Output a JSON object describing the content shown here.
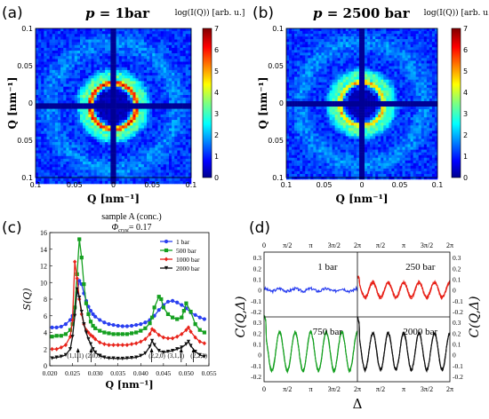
{
  "chart_data": [
    {
      "type": "heatmap",
      "panel_label": "(a)",
      "title": "p = 1bar",
      "title_italic_part": "p",
      "title_rest": " = 1bar",
      "colorbar_label": "log(I(Q)) [arb. u.]",
      "colorbar_ticks": [
        "0",
        "1",
        "2",
        "3",
        "4",
        "5",
        "6",
        "7"
      ],
      "colorbar_range": [
        0,
        7
      ],
      "xlabel": "Q [nm⁻¹]",
      "ylabel": "Q [nm⁻¹]",
      "x_ticks": [
        "0.1",
        "0.05",
        "0",
        "0.05",
        "0.1"
      ],
      "y_ticks": [
        "0.1",
        "0.05",
        "0",
        "0.05",
        "0.1"
      ],
      "ring_radius": 0.03,
      "ring_peak_log_intensity": 6.2
    },
    {
      "type": "heatmap",
      "panel_label": "(b)",
      "title": "p = 2500 bar",
      "title_italic_part": "p",
      "title_rest": " = 2500 bar",
      "colorbar_label": "log(I(Q)) [arb. u.]",
      "colorbar_ticks": [
        "0",
        "1",
        "2",
        "3",
        "4",
        "5",
        "6",
        "7"
      ],
      "colorbar_range": [
        0,
        7
      ],
      "xlabel": "Q [nm⁻¹]",
      "ylabel": "Q [nm⁻¹]",
      "x_ticks": [
        "0.1",
        "0.05",
        "0",
        "0.05",
        "0.1"
      ],
      "y_ticks": [
        "0.1",
        "0.05",
        "0",
        "0.05",
        "0.1"
      ],
      "ring_radius": 0.029,
      "ring_peak_log_intensity": 5.0
    },
    {
      "type": "line",
      "panel_label": "(c)",
      "title": "sample A (conc.)",
      "subtitle": "Φ_cryst = 0.17",
      "subtitle_main": "Φ",
      "subtitle_sub": "cryst",
      "subtitle_rest": "= 0.17",
      "xlabel": "Q [nm⁻¹]",
      "ylabel": "S(Q)",
      "xlim": [
        0.02,
        0.055
      ],
      "ylim": [
        0,
        16
      ],
      "x_ticks": [
        "0.020",
        "0.025",
        "0.030",
        "0.035",
        "0.040",
        "0.045",
        "0.050",
        "0.055"
      ],
      "y_ticks": [
        "0",
        "2",
        "4",
        "6",
        "8",
        "10",
        "12",
        "14",
        "16"
      ],
      "legend_position": "top-right",
      "annotations": [
        {
          "text": "(1,1,1)",
          "x": 0.0262
        },
        {
          "text": "(2,0,0)",
          "x": 0.0291
        },
        {
          "text": "(2,2,0)",
          "x": 0.0424
        },
        {
          "text": "(3,1,1)",
          "x": 0.0489
        },
        {
          "text": "(2,2,2)",
          "x": 0.0516
        }
      ],
      "series": [
        {
          "name": "1 bar",
          "color": "#2a3ff0",
          "marker": "circle",
          "x": [
            0.0205,
            0.0215,
            0.0225,
            0.0235,
            0.0245,
            0.025,
            0.0255,
            0.026,
            0.0265,
            0.027,
            0.0275,
            0.028,
            0.0285,
            0.029,
            0.0295,
            0.03,
            0.031,
            0.032,
            0.033,
            0.034,
            0.035,
            0.036,
            0.037,
            0.038,
            0.039,
            0.04,
            0.041,
            0.042,
            0.043,
            0.044,
            0.045,
            0.046,
            0.047,
            0.048,
            0.049,
            0.05,
            0.051,
            0.052,
            0.053,
            0.054
          ],
          "y": [
            4.6,
            4.6,
            4.7,
            5.0,
            5.5,
            6.0,
            7.0,
            8.8,
            10.2,
            9.8,
            8.7,
            7.8,
            7.1,
            6.6,
            6.2,
            5.9,
            5.5,
            5.2,
            5.0,
            4.9,
            4.8,
            4.75,
            4.75,
            4.8,
            4.9,
            5.0,
            5.2,
            5.5,
            6.0,
            6.7,
            7.3,
            7.7,
            7.8,
            7.6,
            7.3,
            6.9,
            6.4,
            6.1,
            5.8,
            5.6
          ]
        },
        {
          "name": "500 bar",
          "color": "#15a020",
          "marker": "square",
          "x": [
            0.0205,
            0.0215,
            0.0225,
            0.0235,
            0.0245,
            0.025,
            0.0255,
            0.026,
            0.0265,
            0.027,
            0.0275,
            0.028,
            0.0285,
            0.029,
            0.0295,
            0.03,
            0.031,
            0.032,
            0.033,
            0.034,
            0.035,
            0.036,
            0.037,
            0.038,
            0.039,
            0.04,
            0.041,
            0.042,
            0.0425,
            0.043,
            0.044,
            0.0445,
            0.045,
            0.046,
            0.047,
            0.048,
            0.049,
            0.0495,
            0.05,
            0.051,
            0.052,
            0.053,
            0.054
          ],
          "y": [
            3.5,
            3.6,
            3.6,
            3.8,
            4.3,
            5.0,
            7.0,
            11.0,
            15.2,
            13.0,
            9.8,
            7.5,
            6.2,
            5.3,
            4.8,
            4.5,
            4.2,
            4.0,
            3.9,
            3.8,
            3.8,
            3.8,
            3.8,
            3.9,
            4.0,
            4.2,
            4.5,
            5.1,
            5.8,
            7.0,
            8.3,
            8.0,
            7.0,
            6.2,
            5.8,
            5.6,
            5.8,
            6.6,
            7.5,
            6.5,
            5.0,
            4.3,
            4.0
          ]
        },
        {
          "name": "1000 bar",
          "color": "#e8231a",
          "marker": "diamond",
          "x": [
            0.0205,
            0.0215,
            0.0225,
            0.0235,
            0.0245,
            0.025,
            0.0255,
            0.026,
            0.0265,
            0.027,
            0.0275,
            0.028,
            0.0285,
            0.029,
            0.0295,
            0.03,
            0.031,
            0.032,
            0.033,
            0.034,
            0.035,
            0.036,
            0.037,
            0.038,
            0.039,
            0.04,
            0.041,
            0.042,
            0.0425,
            0.043,
            0.044,
            0.045,
            0.046,
            0.047,
            0.048,
            0.049,
            0.05,
            0.0505,
            0.051,
            0.052,
            0.053,
            0.054
          ],
          "y": [
            2.0,
            2.0,
            2.2,
            2.5,
            3.5,
            5.5,
            12.5,
            10.5,
            8.0,
            6.2,
            5.0,
            4.3,
            4.0,
            3.7,
            3.5,
            3.2,
            2.8,
            2.6,
            2.5,
            2.5,
            2.5,
            2.5,
            2.5,
            2.6,
            2.7,
            2.9,
            3.2,
            3.8,
            4.4,
            4.2,
            3.7,
            3.4,
            3.3,
            3.3,
            3.5,
            3.8,
            4.3,
            4.6,
            4.1,
            3.4,
            2.9,
            2.7
          ]
        },
        {
          "name": "2000 bar",
          "color": "#111111",
          "marker": "triangle",
          "x": [
            0.0205,
            0.0215,
            0.0225,
            0.0235,
            0.0245,
            0.025,
            0.0255,
            0.026,
            0.0265,
            0.027,
            0.0275,
            0.028,
            0.0285,
            0.029,
            0.0295,
            0.03,
            0.031,
            0.032,
            0.033,
            0.034,
            0.035,
            0.036,
            0.037,
            0.038,
            0.039,
            0.04,
            0.041,
            0.042,
            0.0425,
            0.043,
            0.044,
            0.045,
            0.046,
            0.047,
            0.048,
            0.049,
            0.05,
            0.0505,
            0.051,
            0.052,
            0.053,
            0.054
          ],
          "y": [
            0.9,
            1.0,
            1.1,
            1.3,
            2.0,
            3.5,
            6.0,
            9.2,
            8.2,
            6.5,
            5.0,
            4.0,
            3.2,
            2.6,
            2.0,
            1.6,
            1.2,
            1.0,
            0.9,
            0.9,
            0.85,
            0.85,
            0.9,
            0.95,
            1.0,
            1.2,
            1.5,
            2.3,
            3.0,
            2.5,
            1.8,
            1.6,
            1.7,
            1.8,
            2.0,
            2.2,
            2.6,
            2.9,
            2.4,
            1.7,
            1.3,
            1.1
          ]
        }
      ]
    },
    {
      "type": "line",
      "panel_label": "(d)",
      "xlabel": "Δ",
      "ylabel": "C(Q,Δ)",
      "x_tick_labels": [
        "0",
        "π/2",
        "π",
        "3π/2",
        "2π"
      ],
      "y_ticks": [
        "-0.2",
        "-0.1",
        "0",
        "0.1",
        "0.2",
        "0.3"
      ],
      "ylim": [
        -0.25,
        0.35
      ],
      "subpanels": [
        {
          "label": "1 bar",
          "color": "#2a3ff0",
          "amplitude": 0.012,
          "offset": 0.0,
          "period_fraction": 0.167
        },
        {
          "label": "250 bar",
          "color": "#e8231a",
          "amplitude": 0.07,
          "offset": 0.0,
          "period_fraction": 0.167
        },
        {
          "label": "750 bar",
          "color": "#15a020",
          "amplitude": 0.18,
          "offset": 0.03,
          "period_fraction": 0.167
        },
        {
          "label": "2000 bar",
          "color": "#111111",
          "amplitude": 0.17,
          "offset": 0.03,
          "period_fraction": 0.167
        }
      ]
    }
  ]
}
